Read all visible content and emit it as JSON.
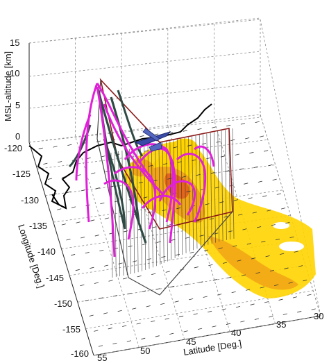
{
  "chart_data": {
    "type": "3d-surface-with-trajectories",
    "title": "",
    "axes": {
      "z": {
        "label": "MSL-altitude [km]",
        "range": [
          0,
          15
        ],
        "ticks": [
          "0",
          "5",
          "10",
          "15"
        ]
      },
      "y": {
        "label": "Longitude [Deg.]",
        "range": [
          -160,
          -120
        ],
        "ticks": [
          "-120",
          "-125",
          "-130",
          "-135",
          "-140",
          "-145",
          "-150",
          "-155",
          "-160"
        ]
      },
      "x": {
        "label": "Latitude [Deg.]",
        "range": [
          30,
          55
        ],
        "ticks": [
          "55",
          "50",
          "45",
          "40",
          "35",
          "30"
        ]
      }
    },
    "grid": true,
    "colors": {
      "coastline": "#000000",
      "flight_area_outline": "#8b1a1a",
      "trajectories_magenta": "#e020d8",
      "trajectories_dark": "#2f4a44",
      "field_light": "#ffd400",
      "field_mid": "#f2a516",
      "field_core": "#e4661a",
      "wind_arrows": "#222222",
      "aircraft": "#3a4aa8"
    },
    "layers": [
      "surface field (yellow-orange shading)",
      "wind vectors",
      "curtain of vertical profiles",
      "3D trajectories (magenta and dark green)",
      "aircraft icon",
      "coastline"
    ]
  }
}
